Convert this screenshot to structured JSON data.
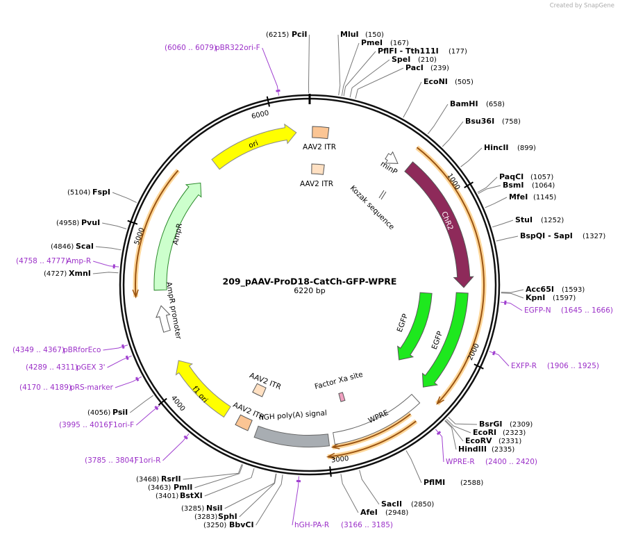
{
  "header": {
    "credit": "Created by SnapGene"
  },
  "map": {
    "name": "209_pAAV-ProD18-CatCh-GFP-WPRE",
    "length": "6220 bp",
    "ticks": [
      1000,
      2000,
      3000,
      4000,
      5000,
      6000
    ]
  },
  "enzymes": [
    {
      "name": "PciI",
      "site": "(6215)"
    },
    {
      "name": "MluI",
      "site": "(150)"
    },
    {
      "name": "PmeI",
      "site": "(167)"
    },
    {
      "name": "PflFI   - Tth111I",
      "site": "(177)"
    },
    {
      "name": "SpeI",
      "site": "(210)"
    },
    {
      "name": "PacI",
      "site": "(239)"
    },
    {
      "name": "EcoNI",
      "site": "(505)"
    },
    {
      "name": "BamHI",
      "site": "(658)"
    },
    {
      "name": "Bsu36I",
      "site": "(758)"
    },
    {
      "name": "HincII",
      "site": "(899)"
    },
    {
      "name": "PaqCI",
      "site": "(1057)"
    },
    {
      "name": "BsmI",
      "site": "(1064)"
    },
    {
      "name": "MfeI",
      "site": "(1145)"
    },
    {
      "name": "StuI",
      "site": "(1252)"
    },
    {
      "name": "BspQI    - SapI",
      "site": "(1327)"
    },
    {
      "name": "Acc65I",
      "site": "(1593)"
    },
    {
      "name": "KpnI",
      "site": "(1597)"
    },
    {
      "name": "BsrGI",
      "site": "(2309)"
    },
    {
      "name": "EcoRI",
      "site": "(2323)"
    },
    {
      "name": "EcoRV",
      "site": "(2331)"
    },
    {
      "name": "HindIII",
      "site": "(2335)"
    },
    {
      "name": "PflMI",
      "site": "(2588)"
    },
    {
      "name": "SacII",
      "site": "(2850)"
    },
    {
      "name": "AfeI",
      "site": "(2948)"
    },
    {
      "name": "RsrII",
      "site": "(3468)"
    },
    {
      "name": "PmlI",
      "site": "(3463)"
    },
    {
      "name": "BstXI",
      "site": "(3401)"
    },
    {
      "name": "NsiI",
      "site": "(3285)"
    },
    {
      "name": "SphI",
      "site": "(3283)"
    },
    {
      "name": "BbvCI",
      "site": "(3250)"
    },
    {
      "name": "PsiI",
      "site": "(4056)"
    },
    {
      "name": "XmnI",
      "site": "(4727)"
    },
    {
      "name": "ScaI",
      "site": "(4846)"
    },
    {
      "name": "PvuI",
      "site": "(4958)"
    },
    {
      "name": "FspI",
      "site": "(5104)"
    }
  ],
  "primers": [
    {
      "name": "pBR322ori-F",
      "range": "(6060 .. 6079)"
    },
    {
      "name": "EGFP-N",
      "range": "(1645 .. 1666)"
    },
    {
      "name": "EXFP-R",
      "range": "(1906 .. 1925)"
    },
    {
      "name": "WPRE-R",
      "range": "(2400 .. 2420)"
    },
    {
      "name": "hGH-PA-R",
      "range": "(3166 .. 3185)"
    },
    {
      "name": "F1ori-R",
      "range": "(3785 .. 3804)"
    },
    {
      "name": "F1ori-F",
      "range": "(3995 .. 4016)"
    },
    {
      "name": "pRS-marker",
      "range": "(4170 .. 4189)"
    },
    {
      "name": "pGEX 3'",
      "range": "(4289 .. 4311)"
    },
    {
      "name": "pBRforEco",
      "range": "(4349 .. 4367)"
    },
    {
      "name": "Amp-R",
      "range": "(4758 .. 4777)"
    }
  ],
  "features": [
    {
      "label": "ori"
    },
    {
      "label": "AAV2 ITR"
    },
    {
      "label": "AAV2 ITR"
    },
    {
      "label": "minP"
    },
    {
      "label": "Kozak sequence"
    },
    {
      "label": "ChR2"
    },
    {
      "label": "EGFP"
    },
    {
      "label": "EGFP"
    },
    {
      "label": "Factor Xa site"
    },
    {
      "label": "WPRE"
    },
    {
      "label": "hGH poly(A) signal"
    },
    {
      "label": "AAV2 ITR"
    },
    {
      "label": "AAV2 ITR"
    },
    {
      "label": "f1 ori"
    },
    {
      "label": "AmpR"
    },
    {
      "label": "AmpR promoter"
    }
  ]
}
